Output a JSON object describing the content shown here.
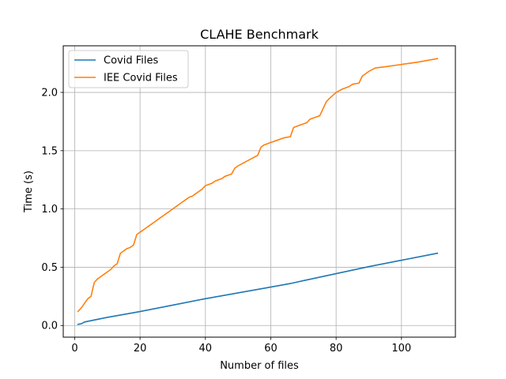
{
  "chart_data": {
    "type": "line",
    "title": "CLAHE Benchmark",
    "xlabel": "Number of files",
    "ylabel": "Time (s)",
    "xlim": [
      -3.5,
      116.5
    ],
    "ylim": [
      -0.1,
      2.4
    ],
    "xticks": [
      0,
      20,
      40,
      60,
      80,
      100
    ],
    "yticks": [
      0.0,
      0.5,
      1.0,
      1.5,
      2.0
    ],
    "xtick_labels": [
      "0",
      "20",
      "40",
      "60",
      "80",
      "100"
    ],
    "ytick_labels": [
      "0.0",
      "0.5",
      "1.0",
      "1.5",
      "2.0"
    ],
    "grid": true,
    "legend_position": "top-left",
    "series": [
      {
        "name": "Covid Files",
        "color": "#1f77b4",
        "x": [
          1,
          2,
          3,
          10,
          20,
          30,
          40,
          50,
          60,
          66,
          70,
          80,
          90,
          100,
          111
        ],
        "y": [
          0.01,
          0.015,
          0.03,
          0.07,
          0.12,
          0.175,
          0.23,
          0.28,
          0.33,
          0.36,
          0.385,
          0.445,
          0.505,
          0.56,
          0.62
        ]
      },
      {
        "name": "IEE Covid Files",
        "color": "#ff7f0e",
        "x": [
          1,
          2,
          3,
          4,
          5,
          6,
          7,
          8,
          9,
          10,
          11,
          12,
          13,
          14,
          15,
          16,
          17,
          18,
          19,
          20,
          21,
          22,
          23,
          24,
          25,
          26,
          27,
          28,
          29,
          30,
          31,
          32,
          33,
          34,
          35,
          36,
          37,
          38,
          39,
          40,
          41,
          42,
          43,
          44,
          45,
          46,
          47,
          48,
          49,
          50,
          52,
          54,
          56,
          57,
          58,
          60,
          62,
          64,
          66,
          67,
          68,
          70,
          71,
          72,
          74,
          75,
          77,
          78,
          80,
          82,
          84,
          85,
          87,
          88,
          90,
          92,
          95,
          100,
          105,
          111
        ],
        "y": [
          0.12,
          0.15,
          0.19,
          0.23,
          0.25,
          0.37,
          0.4,
          0.42,
          0.44,
          0.46,
          0.48,
          0.51,
          0.53,
          0.62,
          0.64,
          0.66,
          0.67,
          0.69,
          0.78,
          0.8,
          0.82,
          0.84,
          0.86,
          0.88,
          0.9,
          0.92,
          0.94,
          0.96,
          0.98,
          1.0,
          1.02,
          1.04,
          1.06,
          1.08,
          1.1,
          1.11,
          1.13,
          1.15,
          1.17,
          1.2,
          1.21,
          1.22,
          1.24,
          1.25,
          1.26,
          1.28,
          1.29,
          1.3,
          1.35,
          1.37,
          1.4,
          1.43,
          1.46,
          1.53,
          1.55,
          1.57,
          1.59,
          1.61,
          1.62,
          1.7,
          1.71,
          1.73,
          1.74,
          1.77,
          1.79,
          1.8,
          1.92,
          1.95,
          2.0,
          2.03,
          2.05,
          2.07,
          2.08,
          2.14,
          2.18,
          2.21,
          2.22,
          2.24,
          2.26,
          2.29
        ]
      }
    ]
  }
}
